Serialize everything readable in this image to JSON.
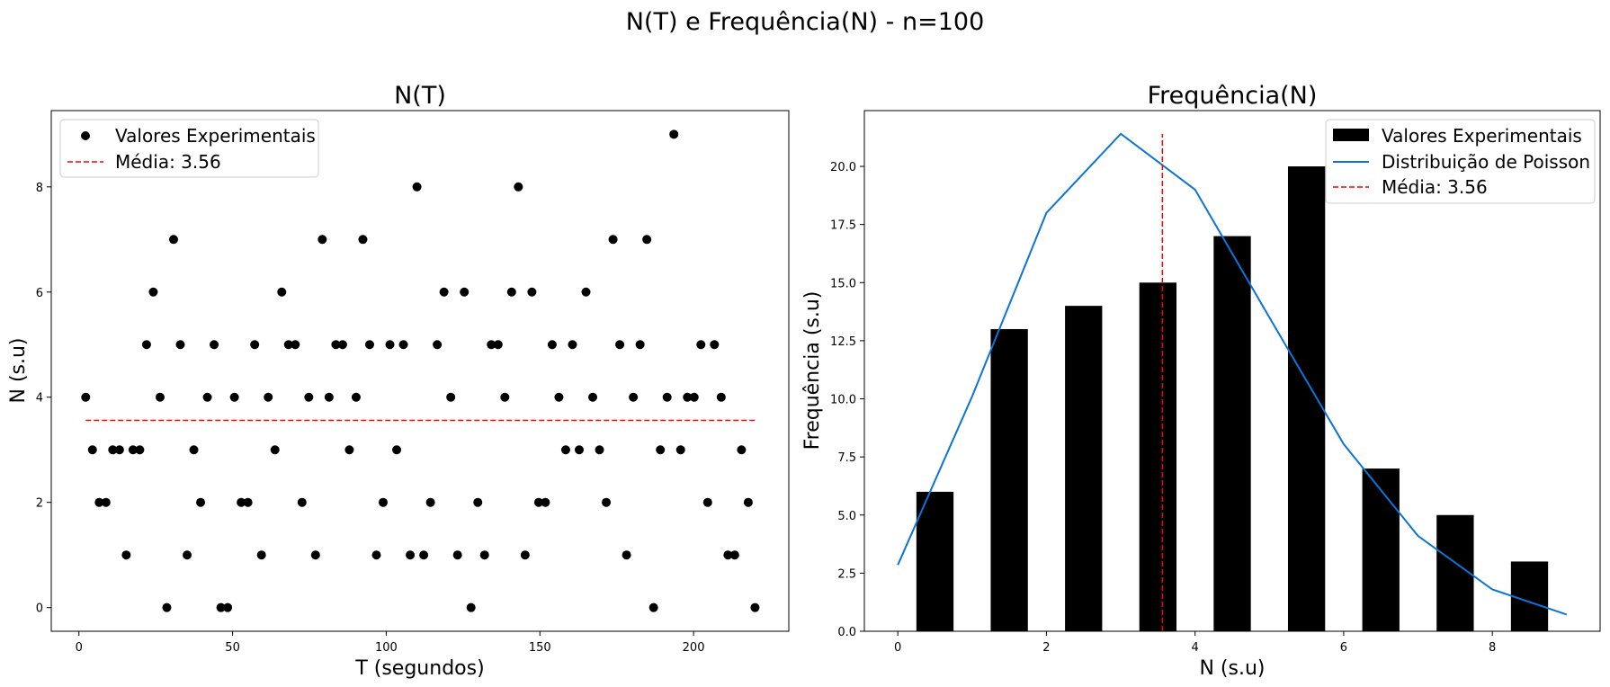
{
  "suptitle": "N(T) e Frequência(N) - n=100",
  "chart_data": [
    {
      "type": "scatter",
      "title": "N(T)",
      "xlabel": "T (segundos)",
      "ylabel": "N (s.u)",
      "xlim": [
        -9,
        231
      ],
      "ylim": [
        -0.45,
        9.45
      ],
      "xticks": [
        0,
        50,
        100,
        150,
        200
      ],
      "yticks": [
        0,
        2,
        4,
        6,
        8
      ],
      "legend_position": "top-left",
      "series": [
        {
          "name": "Valores Experimentais",
          "kind": "scatter",
          "color": "#000000",
          "x": [
            2.2,
            4.4,
            6.6,
            8.8,
            11,
            13.2,
            15.4,
            17.6,
            19.8,
            22,
            24.2,
            26.4,
            28.6,
            30.8,
            33,
            35.2,
            37.4,
            39.6,
            41.8,
            44,
            46.2,
            48.4,
            50.6,
            52.8,
            55,
            57.2,
            59.4,
            61.6,
            63.8,
            66,
            68.2,
            70.4,
            72.6,
            74.8,
            77,
            79.2,
            81.4,
            83.6,
            85.8,
            88,
            90.2,
            92.4,
            94.6,
            96.8,
            99,
            101.2,
            103.4,
            105.6,
            107.8,
            110,
            112.2,
            114.4,
            116.6,
            118.8,
            121,
            123.2,
            125.4,
            127.6,
            129.8,
            132,
            134.2,
            136.4,
            138.6,
            140.8,
            143,
            145.2,
            147.4,
            149.6,
            151.8,
            154,
            156.2,
            158.4,
            160.6,
            162.8,
            165,
            167.2,
            169.4,
            171.6,
            173.8,
            176,
            178.2,
            180.4,
            182.6,
            184.8,
            187,
            189.2,
            191.4,
            193.6,
            195.8,
            198,
            200.2,
            202.4,
            204.6,
            206.8,
            209,
            211.2,
            213.4,
            215.6,
            217.8,
            220
          ],
          "y": [
            4,
            3,
            2,
            2,
            3,
            3,
            1,
            3,
            3,
            5,
            6,
            4,
            0,
            7,
            5,
            1,
            3,
            2,
            4,
            5,
            0,
            0,
            4,
            2,
            2,
            5,
            1,
            4,
            3,
            6,
            5,
            5,
            2,
            4,
            1,
            7,
            4,
            5,
            5,
            3,
            4,
            7,
            5,
            1,
            2,
            5,
            3,
            5,
            1,
            8,
            1,
            2,
            5,
            6,
            4,
            1,
            6,
            0,
            2,
            1,
            5,
            5,
            4,
            6,
            8,
            1,
            6,
            2,
            2,
            5,
            4,
            3,
            5,
            3,
            6,
            4,
            3,
            2,
            7,
            5,
            1,
            4,
            5,
            7,
            0,
            3,
            4,
            9,
            3,
            4,
            4,
            5,
            2,
            5,
            4,
            1,
            1,
            3,
            2,
            0
          ]
        },
        {
          "name": "Média: 3.56",
          "kind": "hline",
          "color": "#ff0000",
          "y": 3.56,
          "x_range": [
            2.2,
            220
          ]
        }
      ]
    },
    {
      "type": "bar",
      "title": "Frequência(N)",
      "xlabel": "N (s.u)",
      "ylabel": "Frequência (s.u)",
      "xlim": [
        -0.45,
        9.45
      ],
      "ylim": [
        0,
        22.4
      ],
      "xticks": [
        0,
        2,
        4,
        6,
        8
      ],
      "yticks": [
        0.0,
        2.5,
        5.0,
        7.5,
        10.0,
        12.5,
        15.0,
        17.5,
        20.0,
        22.5
      ],
      "ytick_labels": [
        "0.0",
        "2.5",
        "5.0",
        "7.5",
        "10.0",
        "12.5",
        "15.0",
        "17.5",
        "20.0",
        ""
      ],
      "legend_position": "top-right",
      "series": [
        {
          "name": "Valores Experimentais",
          "kind": "bar",
          "color": "#000000",
          "x": [
            0.5,
            1.5,
            2.5,
            3.5,
            4.5,
            5.5,
            6.5,
            7.5,
            8.5
          ],
          "values": [
            6,
            13,
            14,
            15,
            17,
            20,
            7,
            5,
            3
          ],
          "bar_width": 0.5
        },
        {
          "name": "Distribuição de Poisson",
          "kind": "line",
          "color": "#0a74da",
          "x": [
            0,
            1,
            2,
            3,
            4,
            5,
            6,
            7,
            8,
            9
          ],
          "values": [
            2.85,
            10.1,
            18.0,
            21.4,
            19.0,
            13.5,
            8.05,
            4.1,
            1.8,
            0.72
          ]
        },
        {
          "name": "Média: 3.56",
          "kind": "vline",
          "color": "#ff0000",
          "x": 3.56,
          "y_range": [
            0,
            21.4
          ]
        }
      ]
    }
  ]
}
